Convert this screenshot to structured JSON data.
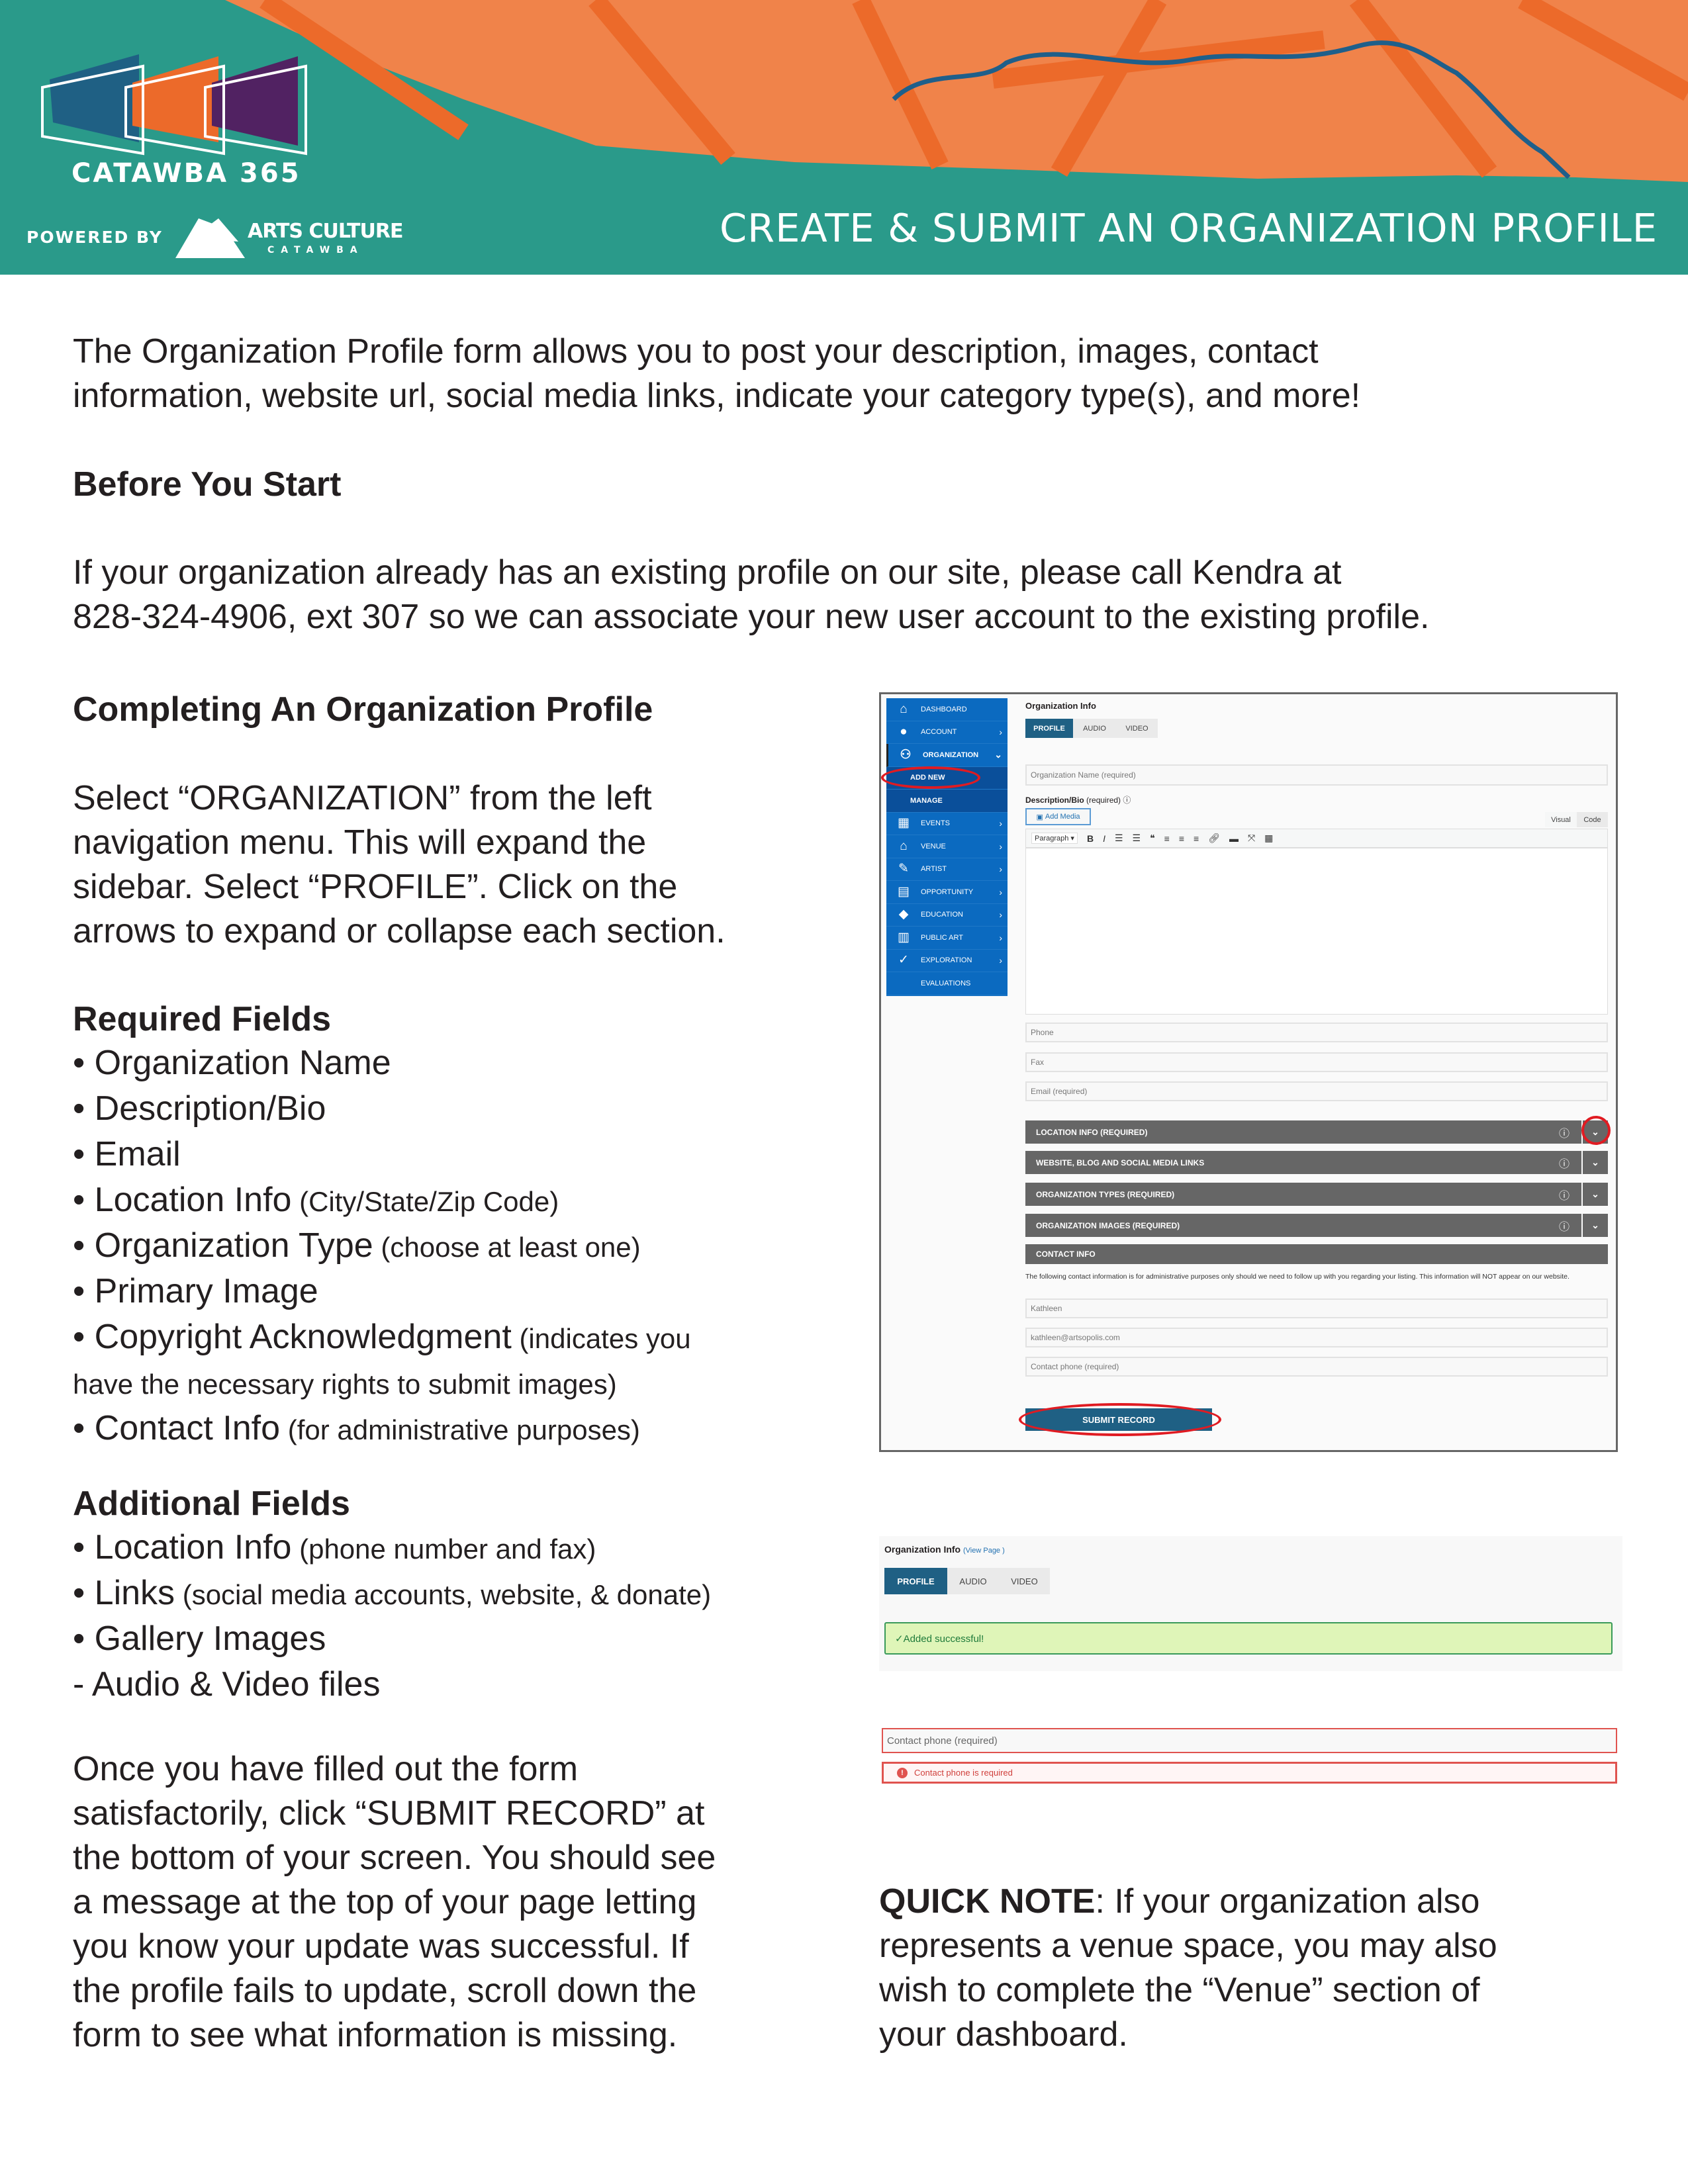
{
  "header": {
    "brand": "CATAWBA 365",
    "powered_by": "POWERED BY",
    "partner_line1": "ARTS CULTURE",
    "partner_line2": "CATAWBA",
    "title": "CREATE & SUBMIT AN ORGANIZATION PROFILE",
    "colors": {
      "teal": "#2a9a8a",
      "orange": "#f0834a",
      "dark_orange": "#ec6a2a",
      "river": "#1f5f8a",
      "logo_blue": "#1f6084",
      "logo_orange": "#ec6a2a",
      "logo_purple": "#512262"
    }
  },
  "intro": [
    "The Organization Profile form allows you to post your description, images, contact",
    "information, website url, social media links, indicate your category type(s), and more!"
  ],
  "before": {
    "heading": "Before You Start",
    "lines": [
      "If your organization already has an existing profile on our site, please call Kendra at",
      "828-324-4906, ext 307 so we can associate your new user account to the existing profile."
    ]
  },
  "completing": {
    "heading": "Completing An Organization Profile",
    "lines": [
      "Select “ORGANIZATION” from the left",
      "navigation menu. This will expand the",
      "sidebar. Select “PROFILE”. Click on the",
      "arrows to expand or collapse each section."
    ]
  },
  "required": {
    "heading": "Required Fields",
    "items": [
      {
        "main": "• Organization Name",
        "note": ""
      },
      {
        "main": "• Description/Bio",
        "note": ""
      },
      {
        "main": "• Email",
        "note": ""
      },
      {
        "main": "• Location Info",
        "note": " (City/State/Zip Code)"
      },
      {
        "main": "• Organization Type",
        "note": " (choose at least one)"
      },
      {
        "main": "• Primary Image",
        "note": ""
      },
      {
        "main": "• Copyright Acknowledgment",
        "note": " (indicates you"
      },
      {
        "main": "",
        "note": "have the necessary rights to submit images)"
      },
      {
        "main": "• Contact Info",
        "note": " (for administrative purposes)"
      }
    ]
  },
  "additional": {
    "heading": "Additional Fields",
    "items": [
      {
        "main": "• Location Info",
        "note": " (phone number and fax)"
      },
      {
        "main": "• Links",
        "note": " (social media accounts, website, & donate)"
      },
      {
        "main": "• Gallery Images",
        "note": ""
      },
      {
        "main": "-  Audio & Video files",
        "note": ""
      }
    ]
  },
  "once": [
    "Once you have filled out the form",
    "satisfactorily, click “SUBMIT RECORD” at",
    "the bottom of your screen. You should see",
    "a message at the top of your page letting",
    "you know your update was successful. If",
    "the profile fails to update, scroll down the",
    "form to see what information is missing."
  ],
  "quick_note": {
    "label": "QUICK NOTE",
    "lines": [
      ": If your organization also",
      "represents a venue space, you may also",
      "wish to complete the “Venue” section of",
      "your dashboard."
    ]
  },
  "screenshot1": {
    "sidebar": [
      {
        "label": "DASHBOARD",
        "icon": "home-icon",
        "glyph": "⌂",
        "chevron": ""
      },
      {
        "label": "ACCOUNT",
        "icon": "user-icon",
        "glyph": "●",
        "chevron": "›"
      },
      {
        "label": "ORGANIZATION",
        "icon": "users-icon",
        "glyph": "⚇",
        "chevron": "⌄"
      },
      {
        "label": "ADD NEW",
        "sub": true
      },
      {
        "label": "MANAGE",
        "sub": true
      },
      {
        "label": "EVENTS",
        "icon": "calendar-icon",
        "glyph": "▦",
        "chevron": "›"
      },
      {
        "label": "VENUE",
        "icon": "building-icon",
        "glyph": "⌂",
        "chevron": "›"
      },
      {
        "label": "ARTIST",
        "icon": "brush-icon",
        "glyph": "✎",
        "chevron": "›"
      },
      {
        "label": "OPPORTUNITY",
        "icon": "document-icon",
        "glyph": "▤",
        "chevron": "›"
      },
      {
        "label": "EDUCATION",
        "icon": "graduation-cap-icon",
        "glyph": "◆",
        "chevron": "›"
      },
      {
        "label": "PUBLIC ART",
        "icon": "map-icon",
        "glyph": "▥",
        "chevron": "›"
      },
      {
        "label": "EXPLORATION",
        "icon": "check-icon",
        "glyph": "✓",
        "chevron": "›"
      },
      {
        "label": "EVALUATIONS",
        "icon": "",
        "glyph": "",
        "chevron": ""
      }
    ],
    "title": "Organization Info",
    "tabs": [
      "PROFILE",
      "AUDIO",
      "VIDEO"
    ],
    "org_name_placeholder": "Organization Name (required)",
    "desc_label": "Description/Bio",
    "desc_required": " (required)",
    "add_media": "Add Media",
    "editor_tabs": [
      "Visual",
      "Code"
    ],
    "paragraph_select": "Paragraph",
    "phone": "Phone",
    "fax": "Fax",
    "email": "Email (required)",
    "accordions": [
      "LOCATION INFO (REQUIRED)",
      "WEBSITE, BLOG AND SOCIAL MEDIA LINKS",
      "ORGANIZATION TYPES (REQUIRED)",
      "ORGANIZATION IMAGES (REQUIRED)"
    ],
    "contact_header": "CONTACT INFO",
    "contact_note": "The following contact information is for administrative purposes only should we need to follow up with you regarding your listing. This information will NOT appear on our website.",
    "contact_name": "Kathleen",
    "contact_email": "kathleen@artsopolis.com",
    "contact_phone": "Contact phone (required)",
    "submit": "SUBMIT RECORD",
    "highlight_color": "#e01b22"
  },
  "screenshot2": {
    "title": "Organization Info",
    "view_page": "(View Page )",
    "tabs": [
      "PROFILE",
      "AUDIO",
      "VIDEO"
    ],
    "success": "✓Added successful!",
    "contact_phone": "Contact phone (required)",
    "error": "Contact phone is required",
    "success_bg": "#dff5b8",
    "error_color": "#e0534f"
  }
}
